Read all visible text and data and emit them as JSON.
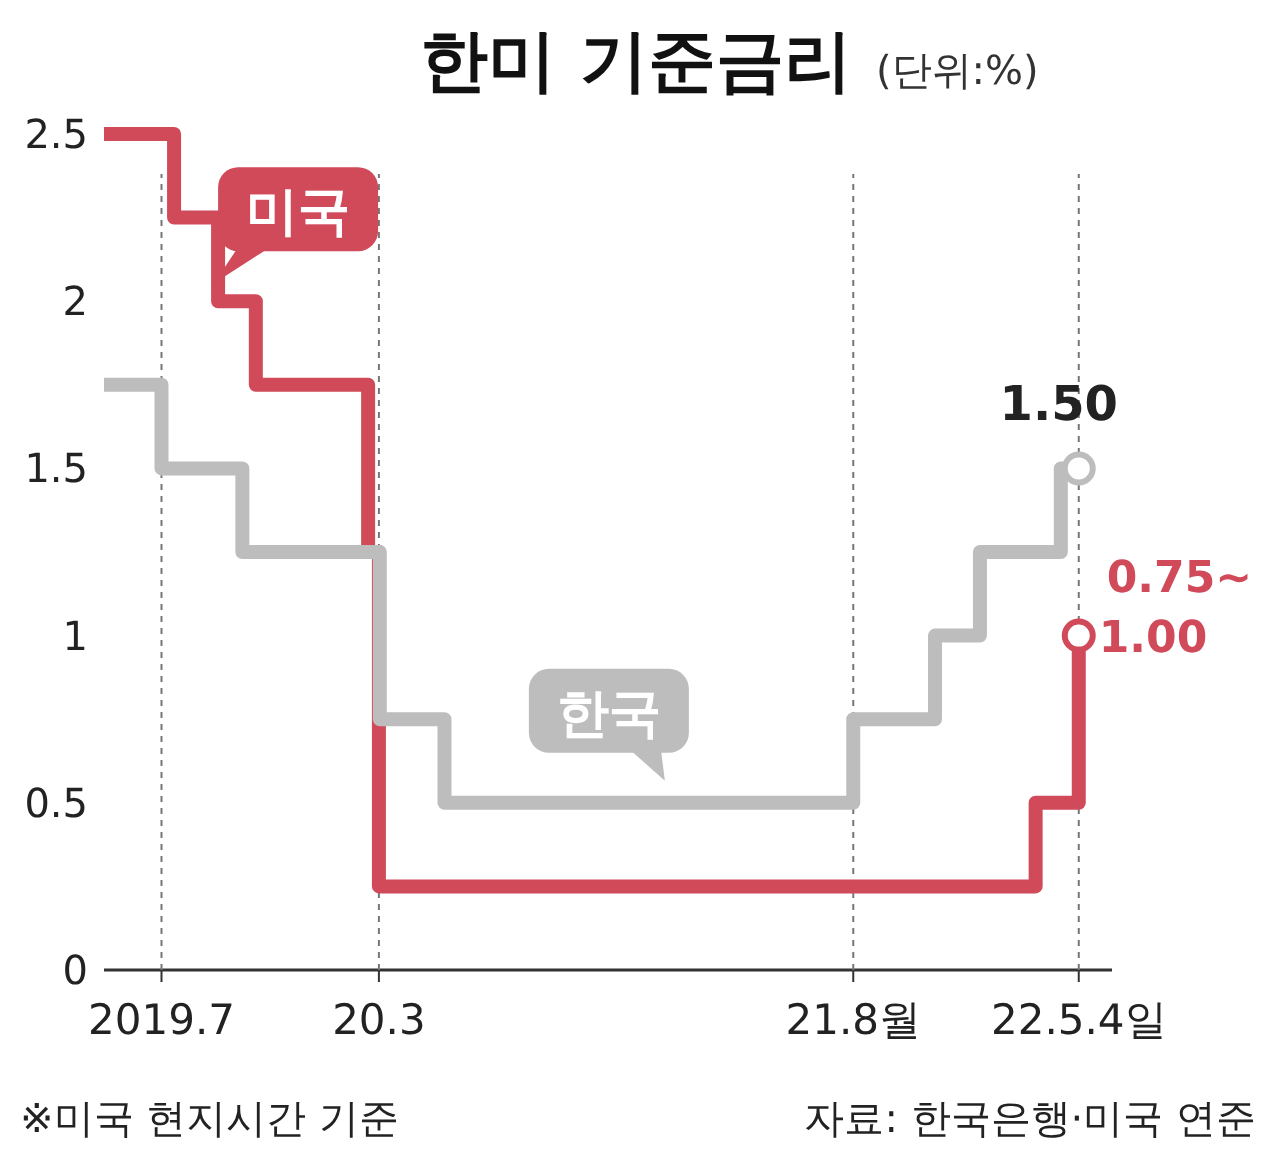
{
  "chart_data": {
    "type": "step",
    "title": "한미 기준금리",
    "subtitle": "(단위:%)",
    "xlim": [
      "2019-05-15",
      "2022-06-10"
    ],
    "xticks": [
      {
        "value": "2019-07-18",
        "label": "2019.7"
      },
      {
        "value": "2020-03-16",
        "label": "20.3"
      },
      {
        "value": "2021-08-26",
        "label": "21.8월"
      },
      {
        "value": "2022-05-04",
        "label": "22.5.4일"
      }
    ],
    "ylim": [
      0,
      2.5
    ],
    "yticks": [
      0,
      0.5,
      1.0,
      1.5,
      2.0,
      2.5
    ],
    "grid": "x",
    "marker": "none",
    "line_style": "solid",
    "series": [
      {
        "name": "미국",
        "color": "#d04a5a",
        "x": [
          "2019-05-15",
          "2019-08-01",
          "2019-09-19",
          "2019-10-31",
          "2020-03-04",
          "2020-03-16",
          "2022-03-17",
          "2022-05-04"
        ],
        "values": [
          2.5,
          2.25,
          2.0,
          1.75,
          1.25,
          0.25,
          0.5,
          1.0
        ]
      },
      {
        "name": "한국",
        "color": "#bdbdbd",
        "x": [
          "2019-05-15",
          "2019-07-18",
          "2019-10-16",
          "2020-03-17",
          "2020-05-28",
          "2021-08-26",
          "2021-11-25",
          "2022-01-14",
          "2022-04-14",
          "2022-05-04"
        ],
        "values": [
          1.75,
          1.5,
          1.25,
          0.75,
          0.5,
          0.75,
          1.0,
          1.25,
          1.5,
          1.5
        ]
      }
    ],
    "annotations": [
      {
        "text": "1.50",
        "x": "2022-05-04",
        "y": 1.5
      },
      {
        "text": "0.75~\n1.00",
        "x": "2022-05-04",
        "y": 1.0
      },
      "※미국 현지시간 기준",
      "자료: 한국은행·미국 연준"
    ]
  }
}
